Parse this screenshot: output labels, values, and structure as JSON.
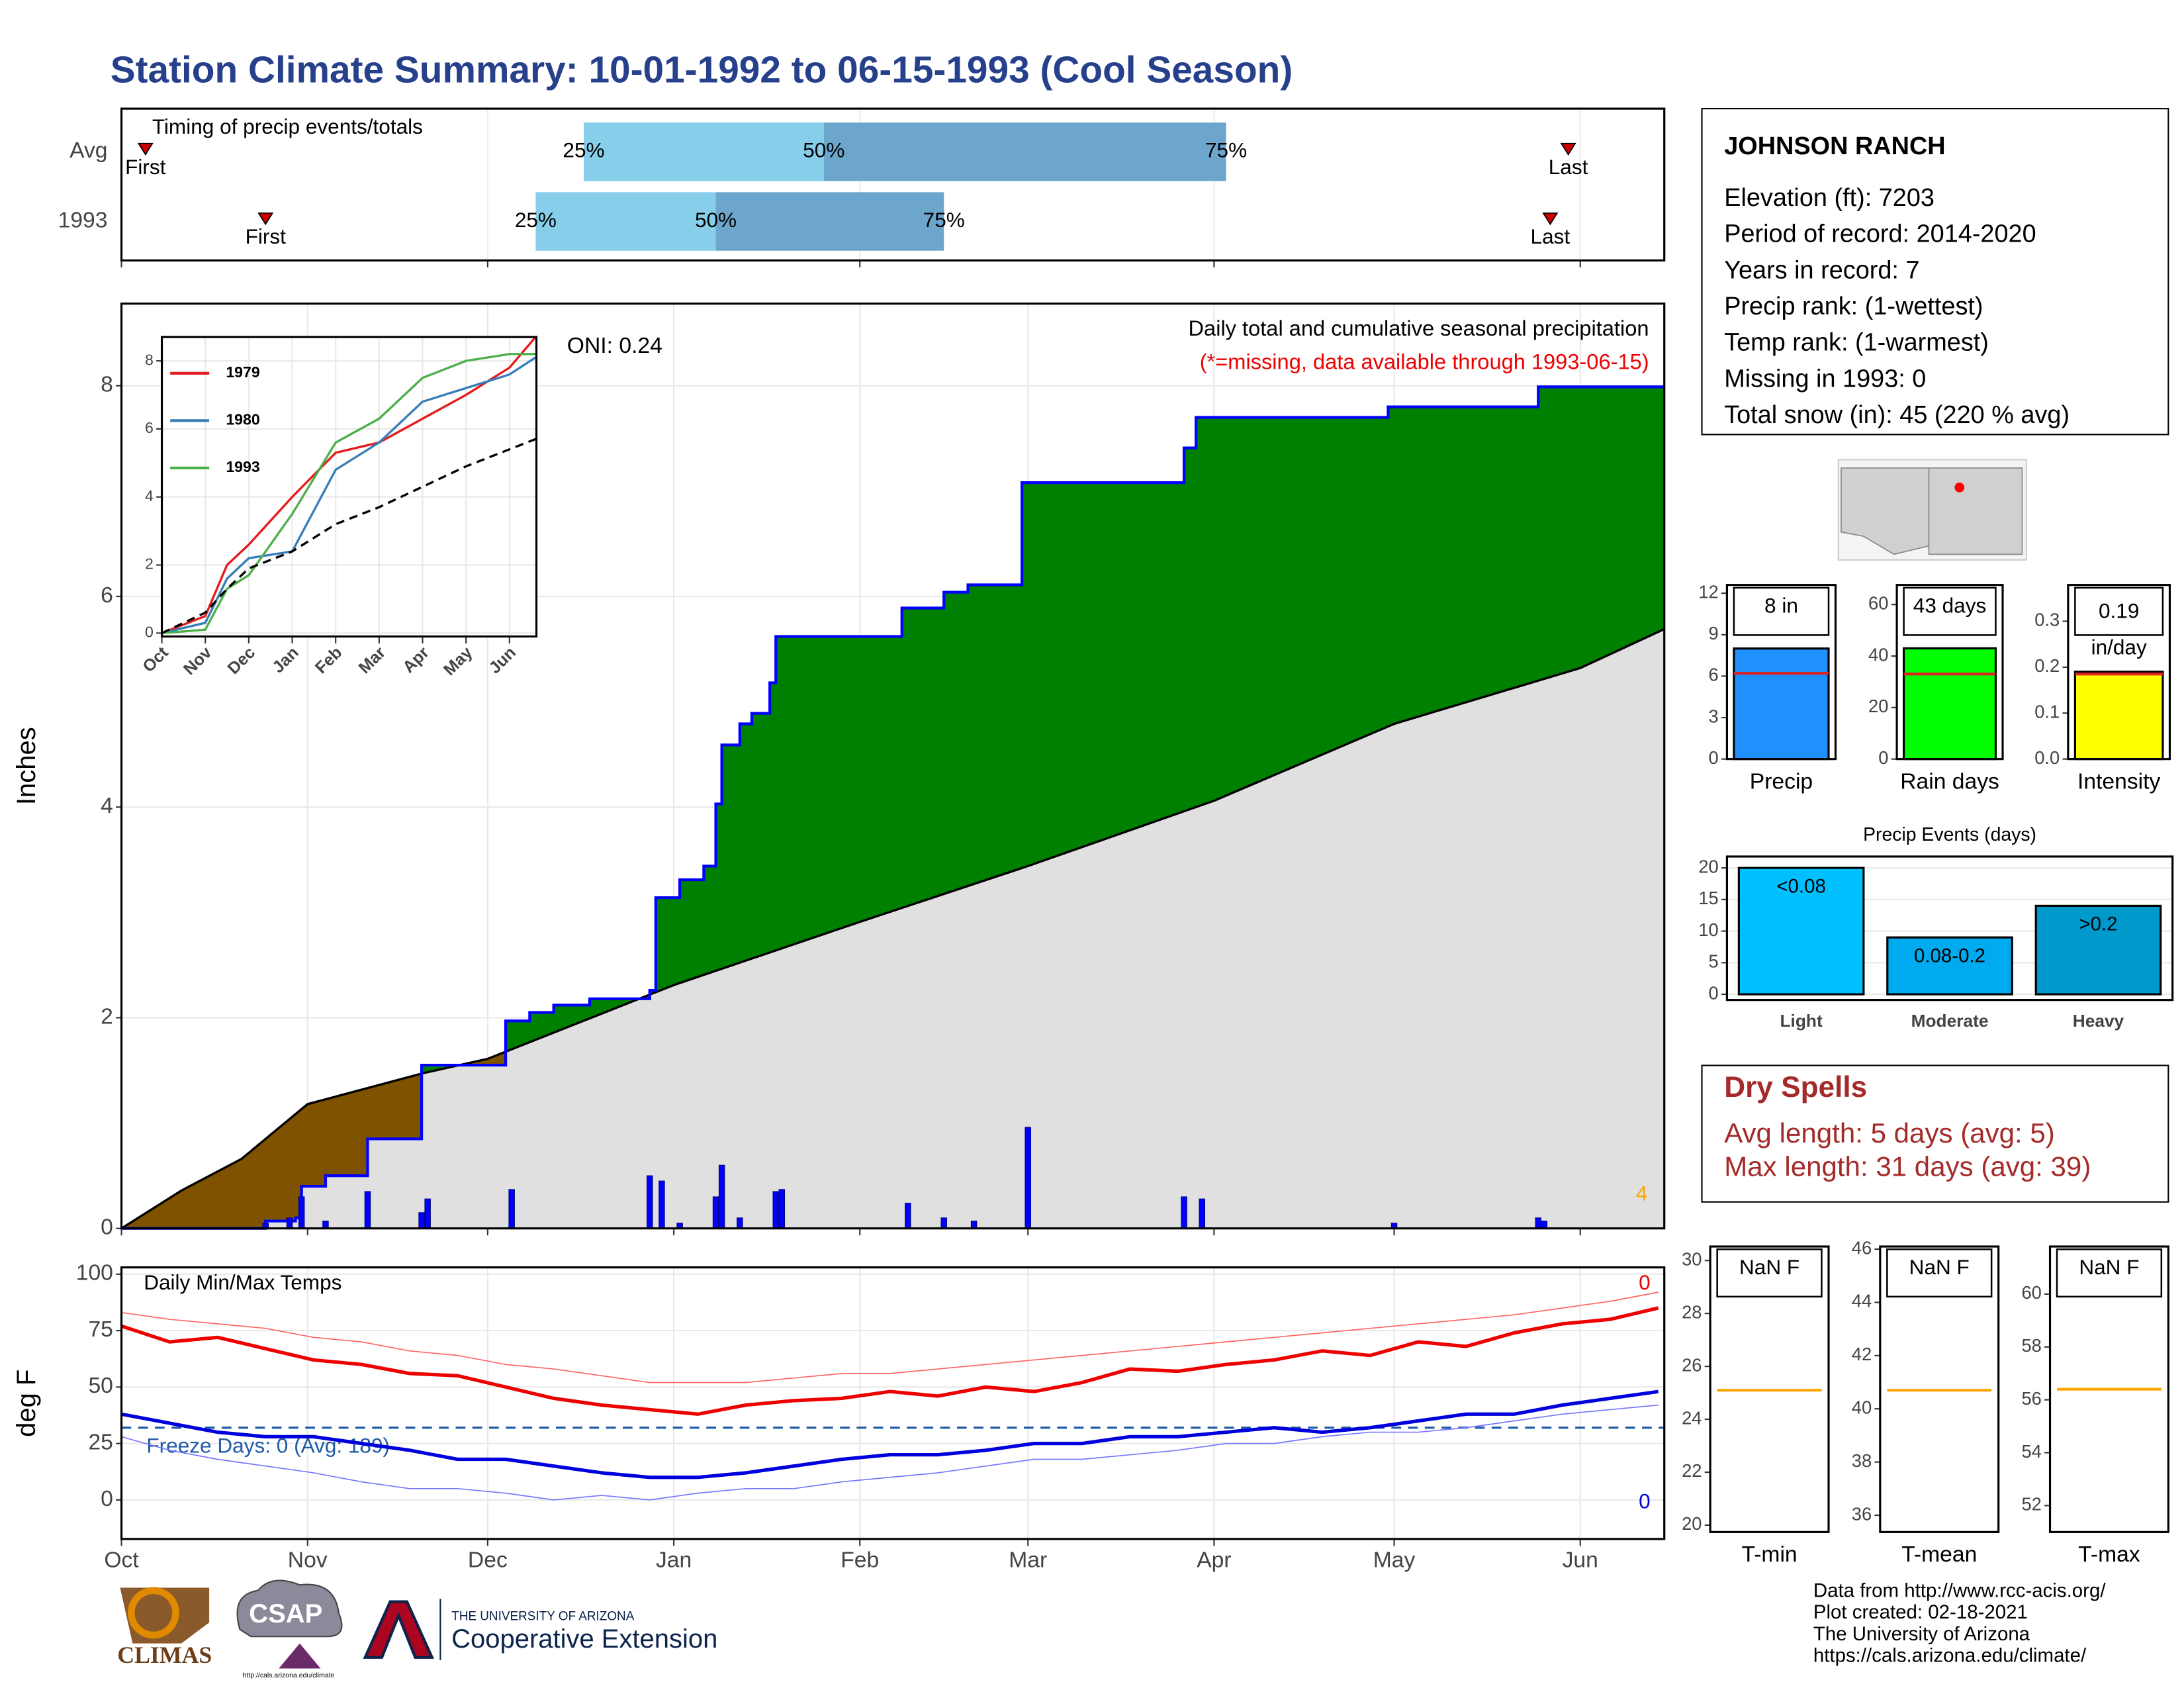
{
  "title": "Station Climate Summary: 10-01-1992 to 06-15-1993 (Cool Season)",
  "station": {
    "name": "JOHNSON RANCH",
    "lines": [
      "Elevation (ft): 7203",
      "Period of record: 2014-2020",
      "Years in record: 7",
      "Precip rank:  (1-wettest)",
      "Temp rank:  (1-warmest)",
      "Missing in 1993: 0",
      "Total snow (in): 45 (220 % avg)"
    ]
  },
  "dry_spells": {
    "title": "Dry Spells",
    "lines": [
      "Avg length: 5 days (avg: 5)",
      "Max length: 31 days (avg: 39)"
    ]
  },
  "footer": [
    "Data from http://www.rcc-acis.org/",
    "Plot created: 02-18-2021",
    "The University of Arizona",
    "https://cals.arizona.edu/climate/"
  ],
  "logos": {
    "climas": "CLIMAS",
    "csap": "CSAP",
    "csap_url": "http://cals.arizona.edu/climate",
    "university": "THE UNIVERSITY OF ARIZONA",
    "extension": "Cooperative Extension"
  },
  "chart_data": [
    {
      "type": "timing",
      "title": "Timing of precip events/totals",
      "categories": [
        "Avg",
        "1993"
      ],
      "rows": [
        {
          "first": 4,
          "q25": 77,
          "q50": 117,
          "q75": 184,
          "last": 241
        },
        {
          "first": 24,
          "q25": 69,
          "q50": 99,
          "q75": 137,
          "last": 238
        }
      ],
      "quantile_labels": [
        "25%",
        "50%",
        "75%"
      ],
      "marker_labels": [
        "First",
        "Last"
      ],
      "xlim": [
        0,
        257
      ],
      "xticks": [
        0,
        61,
        123,
        182,
        243
      ],
      "grid": true,
      "colors": {
        "light": "#87ceeb",
        "dark": "#6ca6cd",
        "marker": "#cc0000"
      }
    },
    {
      "type": "precip_cumulative",
      "ylabel": "Inches",
      "annotations": [
        "Daily total and cumulative seasonal precipitation",
        "(*=missing, data available through 1993-06-15)"
      ],
      "oni": "ONI: 0.24",
      "corner_label": "4",
      "xlim": [
        0,
        257
      ],
      "xticks": [
        0,
        31,
        61,
        92,
        123,
        151,
        182,
        212,
        243
      ],
      "ylim": [
        0,
        8.78
      ],
      "yticks": [
        0,
        2,
        4,
        6,
        8
      ],
      "grid": true,
      "cumulative": {
        "color": "#0000ff",
        "x": [
          0,
          24,
          29,
          30,
          34,
          41,
          50,
          64,
          68,
          72,
          78,
          88,
          89,
          93,
          97,
          99,
          100,
          103,
          105,
          108,
          109,
          130,
          137,
          141,
          150,
          177,
          179,
          211,
          236,
          257
        ],
        "values": [
          0,
          0.07,
          0.1,
          0.4,
          0.5,
          0.85,
          1.55,
          1.97,
          2.05,
          2.12,
          2.18,
          2.26,
          3.14,
          3.31,
          3.44,
          4.03,
          4.59,
          4.79,
          4.89,
          5.18,
          5.62,
          5.89,
          6.04,
          6.11,
          7.08,
          7.41,
          7.7,
          7.8,
          7.99,
          7.99
        ]
      },
      "average": {
        "color": "#000000",
        "x": [
          0,
          10,
          20,
          31,
          50,
          61,
          92,
          123,
          151,
          182,
          212,
          243,
          257
        ],
        "values": [
          0,
          0.36,
          0.66,
          1.18,
          1.47,
          1.61,
          2.31,
          2.91,
          3.44,
          4.06,
          4.79,
          5.32,
          5.69
        ]
      },
      "daily": {
        "color": "#0000ff",
        "x": [
          24,
          28,
          30,
          34,
          41,
          50,
          51,
          65,
          88,
          90,
          93,
          99,
          100,
          103,
          109,
          110,
          131,
          137,
          142,
          151,
          177,
          180,
          212,
          236,
          237
        ],
        "values": [
          0.05,
          0.1,
          0.3,
          0.07,
          0.35,
          0.15,
          0.28,
          0.37,
          0.5,
          0.45,
          0.05,
          0.3,
          0.6,
          0.1,
          0.35,
          0.37,
          0.24,
          0.1,
          0.07,
          0.96,
          0.3,
          0.28,
          0.05,
          0.1,
          0.07
        ]
      },
      "fills": {
        "above": "#008000",
        "below": "#7f5200",
        "base": "#e0e0e0"
      }
    },
    {
      "type": "line",
      "x": [
        0,
        1,
        1.5,
        2,
        3,
        4,
        5,
        6,
        7,
        8,
        8.6
      ],
      "series": [
        {
          "name": "1979",
          "color": "#e41a1c",
          "values": [
            0,
            0.5,
            2,
            2.6,
            4,
            5.3,
            5.6,
            6.3,
            7,
            7.8,
            8.7
          ]
        },
        {
          "name": "1980",
          "color": "#377eb8",
          "values": [
            0,
            0.3,
            1.6,
            2.2,
            2.4,
            4.8,
            5.6,
            6.8,
            7.2,
            7.6,
            8.1
          ]
        },
        {
          "name": "1993",
          "color": "#4daf4a",
          "values": [
            0,
            0.1,
            1.3,
            1.7,
            3.5,
            5.6,
            6.3,
            7.5,
            8,
            8.2,
            8.2
          ]
        },
        {
          "color": "#000000",
          "dash": true,
          "values": [
            0,
            0.6,
            1.3,
            1.9,
            2.4,
            3.2,
            3.7,
            4.3,
            4.9,
            5.4,
            5.7
          ]
        }
      ],
      "xlim": [
        0,
        8.62
      ],
      "xticks": [
        {
          "value": 0,
          "label": "Oct"
        },
        {
          "value": 1,
          "label": "Nov"
        },
        {
          "value": 2,
          "label": "Dec"
        },
        {
          "value": 3,
          "label": "Jan"
        },
        {
          "value": 4,
          "label": "Feb"
        },
        {
          "value": 5,
          "label": "Mar"
        },
        {
          "value": 6,
          "label": "Apr"
        },
        {
          "value": 7,
          "label": "May"
        },
        {
          "value": 8,
          "label": "Jun"
        }
      ],
      "ylim": [
        -0.1,
        8.7
      ],
      "yticks": [
        0,
        2,
        4,
        6,
        8
      ],
      "grid": true,
      "legend": "top-left"
    },
    {
      "type": "line",
      "title": "Daily Min/Max Temps",
      "ylabel": "deg F",
      "x": [
        0,
        8,
        16,
        24,
        32,
        40,
        48,
        56,
        64,
        72,
        80,
        88,
        96,
        104,
        112,
        120,
        128,
        136,
        144,
        152,
        160,
        168,
        176,
        184,
        192,
        200,
        208,
        216,
        224,
        232,
        240,
        248,
        256
      ],
      "series": [
        {
          "color": "#ff6666",
          "width": 0.8,
          "values": [
            83,
            80,
            78,
            76,
            72,
            70,
            66,
            64,
            60,
            58,
            55,
            52,
            52,
            52,
            54,
            56,
            56,
            58,
            60,
            62,
            64,
            66,
            68,
            70,
            72,
            74,
            76,
            78,
            80,
            82,
            85,
            88,
            92
          ]
        },
        {
          "color": "#7777ff",
          "width": 0.8,
          "values": [
            28,
            22,
            18,
            15,
            12,
            8,
            5,
            5,
            3,
            0,
            2,
            0,
            3,
            5,
            5,
            8,
            10,
            12,
            15,
            18,
            18,
            20,
            22,
            25,
            25,
            28,
            30,
            30,
            32,
            35,
            38,
            40,
            42
          ]
        },
        {
          "color": "#ee0000",
          "width": 2.5,
          "end_label": "0",
          "values": [
            77,
            70,
            72,
            67,
            62,
            60,
            56,
            55,
            50,
            45,
            42,
            40,
            38,
            42,
            44,
            45,
            48,
            46,
            50,
            48,
            52,
            58,
            57,
            60,
            62,
            66,
            64,
            70,
            68,
            74,
            78,
            80,
            85
          ]
        },
        {
          "color": "#0000dd",
          "width": 2.5,
          "end_label": "0",
          "values": [
            38,
            34,
            30,
            28,
            28,
            25,
            22,
            18,
            18,
            15,
            12,
            10,
            10,
            12,
            15,
            18,
            20,
            20,
            22,
            25,
            25,
            28,
            28,
            30,
            32,
            30,
            32,
            35,
            38,
            38,
            42,
            45,
            48
          ]
        }
      ],
      "reference": {
        "value": 32,
        "label": "Freeze Days: 0 (Avg: 189)",
        "color": "#1f5aa6"
      },
      "xlim": [
        0,
        257
      ],
      "xticks": [
        {
          "value": 0,
          "label": "Oct"
        },
        {
          "value": 31,
          "label": "Nov"
        },
        {
          "value": 61,
          "label": "Dec"
        },
        {
          "value": 92,
          "label": "Jan"
        },
        {
          "value": 123,
          "label": "Feb"
        },
        {
          "value": 151,
          "label": "Mar"
        },
        {
          "value": 182,
          "label": "Apr"
        },
        {
          "value": 212,
          "label": "May"
        },
        {
          "value": 243,
          "label": "Jun"
        }
      ],
      "ylim": [
        -17.3,
        103
      ],
      "yticks": [
        0,
        25,
        50,
        75,
        100
      ],
      "grid": true
    },
    {
      "type": "bar",
      "categories": [
        "Precip"
      ],
      "values": [
        8
      ],
      "value_labels": [
        "8 in"
      ],
      "color": "#1e90ff",
      "avg": 6.2,
      "avg_color": "#dd2222",
      "ylim": [
        0,
        12.6
      ],
      "yticks": [
        0,
        3,
        6,
        9,
        12
      ]
    },
    {
      "type": "bar",
      "categories": [
        "Rain days"
      ],
      "values": [
        43
      ],
      "value_labels": [
        "43 days"
      ],
      "color": "#00ff00",
      "avg": 33,
      "avg_color": "#dd2222",
      "ylim": [
        0,
        67.6
      ],
      "yticks": [
        0,
        20,
        40,
        60
      ]
    },
    {
      "type": "bar",
      "categories": [
        "Intensity"
      ],
      "values": [
        0.19
      ],
      "value_labels": [
        "0.19\nin/day"
      ],
      "color": "#ffff00",
      "avg": 0.185,
      "avg_color": "#dd2222",
      "ylim": [
        0,
        0.379
      ],
      "yticks": [
        {
          "value": 0,
          "label": "0.0"
        },
        0.1,
        0.2,
        0.3
      ]
    },
    {
      "type": "bar",
      "title": "Precip Events (days)",
      "categories": [
        "Light",
        "Moderate",
        "Heavy"
      ],
      "values": [
        20,
        9,
        14
      ],
      "value_labels": [
        "<0.08",
        "0.08-0.2",
        ">0.2"
      ],
      "colors": [
        "#00bfff",
        "#00aaee",
        "#0099cc"
      ],
      "ylim": [
        -0.9,
        21.8
      ],
      "yticks": [
        0,
        5,
        10,
        15,
        20
      ],
      "grid": true
    },
    {
      "type": "bar",
      "categories": [
        "T-min"
      ],
      "values": [
        null
      ],
      "value_labels": [
        "NaN F"
      ],
      "color": "#ffa500",
      "avg": 25.1,
      "avg_color": "#ffa500",
      "ylim": [
        19.74,
        30.53
      ],
      "yticks": [
        20,
        22,
        24,
        26,
        28,
        30
      ]
    },
    {
      "type": "bar",
      "categories": [
        "T-mean"
      ],
      "values": [
        null
      ],
      "value_labels": [
        "NaN F"
      ],
      "color": "#ffa500",
      "avg": 40.7,
      "avg_color": "#ffa500",
      "ylim": [
        35.37,
        46.1
      ],
      "yticks": [
        36,
        38,
        40,
        42,
        44,
        46
      ]
    },
    {
      "type": "bar",
      "categories": [
        "T-max"
      ],
      "values": [
        null
      ],
      "value_labels": [
        "NaN F"
      ],
      "color": "#ffa500",
      "avg": 56.4,
      "avg_color": "#ffa500",
      "ylim": [
        51,
        61.8
      ],
      "yticks": [
        52,
        54,
        56,
        58,
        60
      ]
    }
  ]
}
